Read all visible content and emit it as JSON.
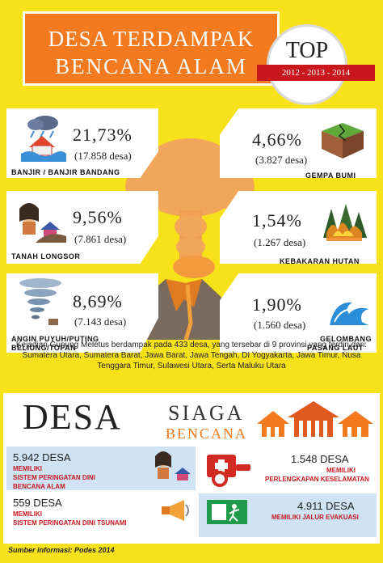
{
  "header": {
    "title_line1": "DESA TERDAMPAK",
    "title_line2": "BENCANA ALAM",
    "top_label": "TOP",
    "years": "2012 - 2013 - 2014"
  },
  "disasters": [
    {
      "pct": "21,73%",
      "count": "(17.858 desa)",
      "label": "BANJIR / BANJIR BANDANG",
      "icon": "flood-house-icon"
    },
    {
      "pct": "4,66%",
      "count": "(3.827 desa)",
      "label": "GEMPA BUMI",
      "icon": "earthquake-icon"
    },
    {
      "pct": "9,56%",
      "count": "(7.861 desa)",
      "label": "TANAH LONGSOR",
      "icon": "landslide-icon"
    },
    {
      "pct": "1,54%",
      "count": "(1.267 desa)",
      "label": "KEBAKARAN HUTAN",
      "icon": "forest-fire-icon"
    },
    {
      "pct": "8,69%",
      "count": "(7.143 desa)",
      "label_line1": "ANGIN PUYUH/PUTING",
      "label_line2": "BELIUNG/TOPAN",
      "icon": "tornado-icon"
    },
    {
      "pct": "1,90%",
      "count": "(1.560 desa)",
      "label_line1": "GELOMBANG",
      "label_line2": "PASANG LAUT",
      "icon": "wave-icon"
    }
  ],
  "description": "Kejadian Gunung Meletus berdampak pada 433 desa, yang tersebar di 9 provinsi yang terdiri dari: Sumatera Utara, Sumatera Barat, Jawa Barat, Jawa Tengah, DI Yogyakarta, Jawa Timur, Nusa Tenggara Timur, Sulawesi Utara, Serta Maluku Utara",
  "siaga": {
    "desa": "DESA",
    "siaga": "SIAGA",
    "bencana": "BENCANA",
    "stats": [
      {
        "num": "5.942 DESA",
        "label": [
          "MEMILIKI",
          "SISTEM PERINGATAN DINI",
          "BENCANA ALAM"
        ]
      },
      {
        "num": "1.548 DESA",
        "label": [
          "MEMILIKI",
          "PERLENGKAPAN KESELAMATAN"
        ]
      },
      {
        "num": "559 DESA",
        "label": [
          "MEMILIKI",
          "SISTEM PERINGATAN DINI TSUNAMI"
        ]
      },
      {
        "num": "4.911 DESA",
        "label": [
          "MEMILIKI JALUR EVAKUASI"
        ]
      }
    ]
  },
  "source": "Sumber informasi: Podes 2014",
  "colors": {
    "background": "#f7e21a",
    "orange": "#f47a20",
    "red": "#c8181e",
    "blue_panel": "#cfe3f5"
  }
}
